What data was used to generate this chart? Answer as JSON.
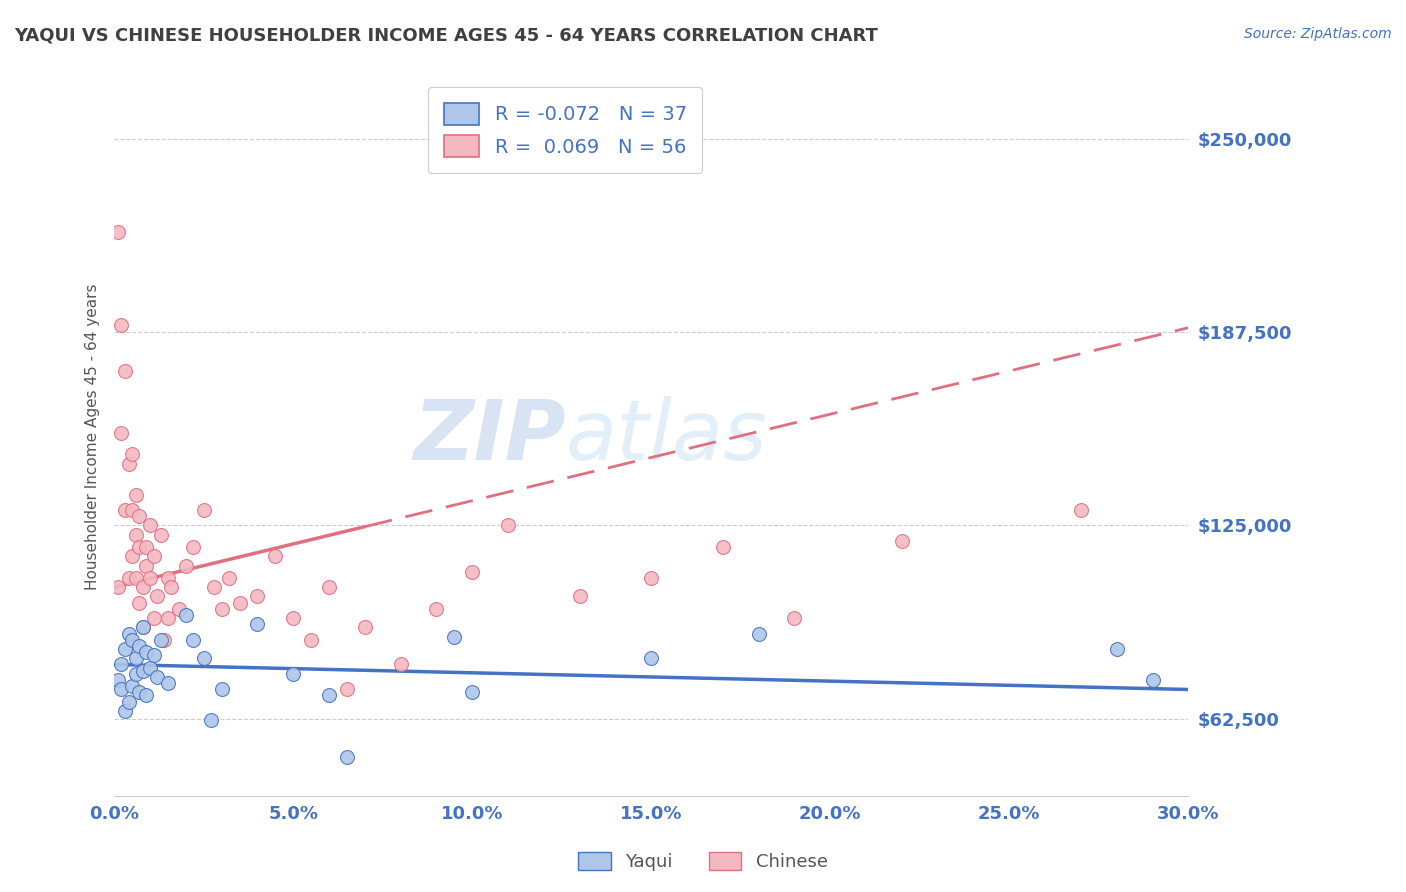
{
  "title": "YAQUI VS CHINESE HOUSEHOLDER INCOME AGES 45 - 64 YEARS CORRELATION CHART",
  "source_text": "Source: ZipAtlas.com",
  "ylabel": "Householder Income Ages 45 - 64 years",
  "watermark_zip": "ZIP",
  "watermark_atlas": "atlas",
  "legend_entries": [
    {
      "label": "Yaqui",
      "color": "#aec6e8",
      "R": -0.072,
      "N": 37
    },
    {
      "label": "Chinese",
      "color": "#f4b8c1",
      "R": 0.069,
      "N": 56
    }
  ],
  "xlim": [
    0.0,
    0.3
  ],
  "ylim": [
    37500,
    270000
  ],
  "yticks": [
    62500,
    125000,
    187500,
    250000
  ],
  "ytick_labels": [
    "$62,500",
    "$125,000",
    "$187,500",
    "$250,000"
  ],
  "xticks": [
    0.0,
    0.05,
    0.1,
    0.15,
    0.2,
    0.25,
    0.3
  ],
  "xtick_labels": [
    "0.0%",
    "5.0%",
    "10.0%",
    "15.0%",
    "20.0%",
    "25.0%",
    "30.0%"
  ],
  "background_color": "#ffffff",
  "grid_color": "#cccccc",
  "axis_label_color": "#4472c4",
  "title_color": "#404040",
  "yaqui_scatter_color": "#aec6e8",
  "chinese_scatter_color": "#f4b8c1",
  "yaqui_line_color": "#4472c4",
  "chinese_line_color": "#e07080",
  "yaqui_x": [
    0.001,
    0.002,
    0.002,
    0.003,
    0.003,
    0.004,
    0.004,
    0.005,
    0.005,
    0.006,
    0.006,
    0.007,
    0.007,
    0.008,
    0.008,
    0.009,
    0.009,
    0.01,
    0.011,
    0.012,
    0.013,
    0.015,
    0.02,
    0.022,
    0.025,
    0.027,
    0.03,
    0.04,
    0.05,
    0.06,
    0.065,
    0.095,
    0.1,
    0.15,
    0.18,
    0.28,
    0.29
  ],
  "yaqui_y": [
    75000,
    80000,
    72000,
    85000,
    65000,
    90000,
    68000,
    88000,
    73000,
    82000,
    77000,
    86000,
    71000,
    92000,
    78000,
    84000,
    70000,
    79000,
    83000,
    76000,
    88000,
    74000,
    96000,
    88000,
    82000,
    62000,
    72000,
    93000,
    77000,
    70000,
    50000,
    89000,
    71000,
    82000,
    90000,
    85000,
    75000
  ],
  "chinese_x": [
    0.001,
    0.001,
    0.002,
    0.002,
    0.003,
    0.003,
    0.004,
    0.004,
    0.005,
    0.005,
    0.005,
    0.006,
    0.006,
    0.006,
    0.007,
    0.007,
    0.007,
    0.008,
    0.008,
    0.009,
    0.009,
    0.01,
    0.01,
    0.011,
    0.011,
    0.012,
    0.013,
    0.014,
    0.015,
    0.015,
    0.016,
    0.018,
    0.02,
    0.022,
    0.025,
    0.028,
    0.03,
    0.032,
    0.035,
    0.04,
    0.045,
    0.05,
    0.055,
    0.06,
    0.065,
    0.07,
    0.08,
    0.09,
    0.1,
    0.11,
    0.13,
    0.15,
    0.17,
    0.19,
    0.22,
    0.27
  ],
  "chinese_y": [
    105000,
    220000,
    190000,
    155000,
    175000,
    130000,
    145000,
    108000,
    130000,
    115000,
    148000,
    122000,
    108000,
    135000,
    118000,
    100000,
    128000,
    105000,
    92000,
    118000,
    112000,
    108000,
    125000,
    95000,
    115000,
    102000,
    122000,
    88000,
    108000,
    95000,
    105000,
    98000,
    112000,
    118000,
    130000,
    105000,
    98000,
    108000,
    100000,
    102000,
    115000,
    95000,
    88000,
    105000,
    72000,
    92000,
    80000,
    98000,
    110000,
    125000,
    102000,
    108000,
    118000,
    95000,
    120000,
    130000
  ]
}
